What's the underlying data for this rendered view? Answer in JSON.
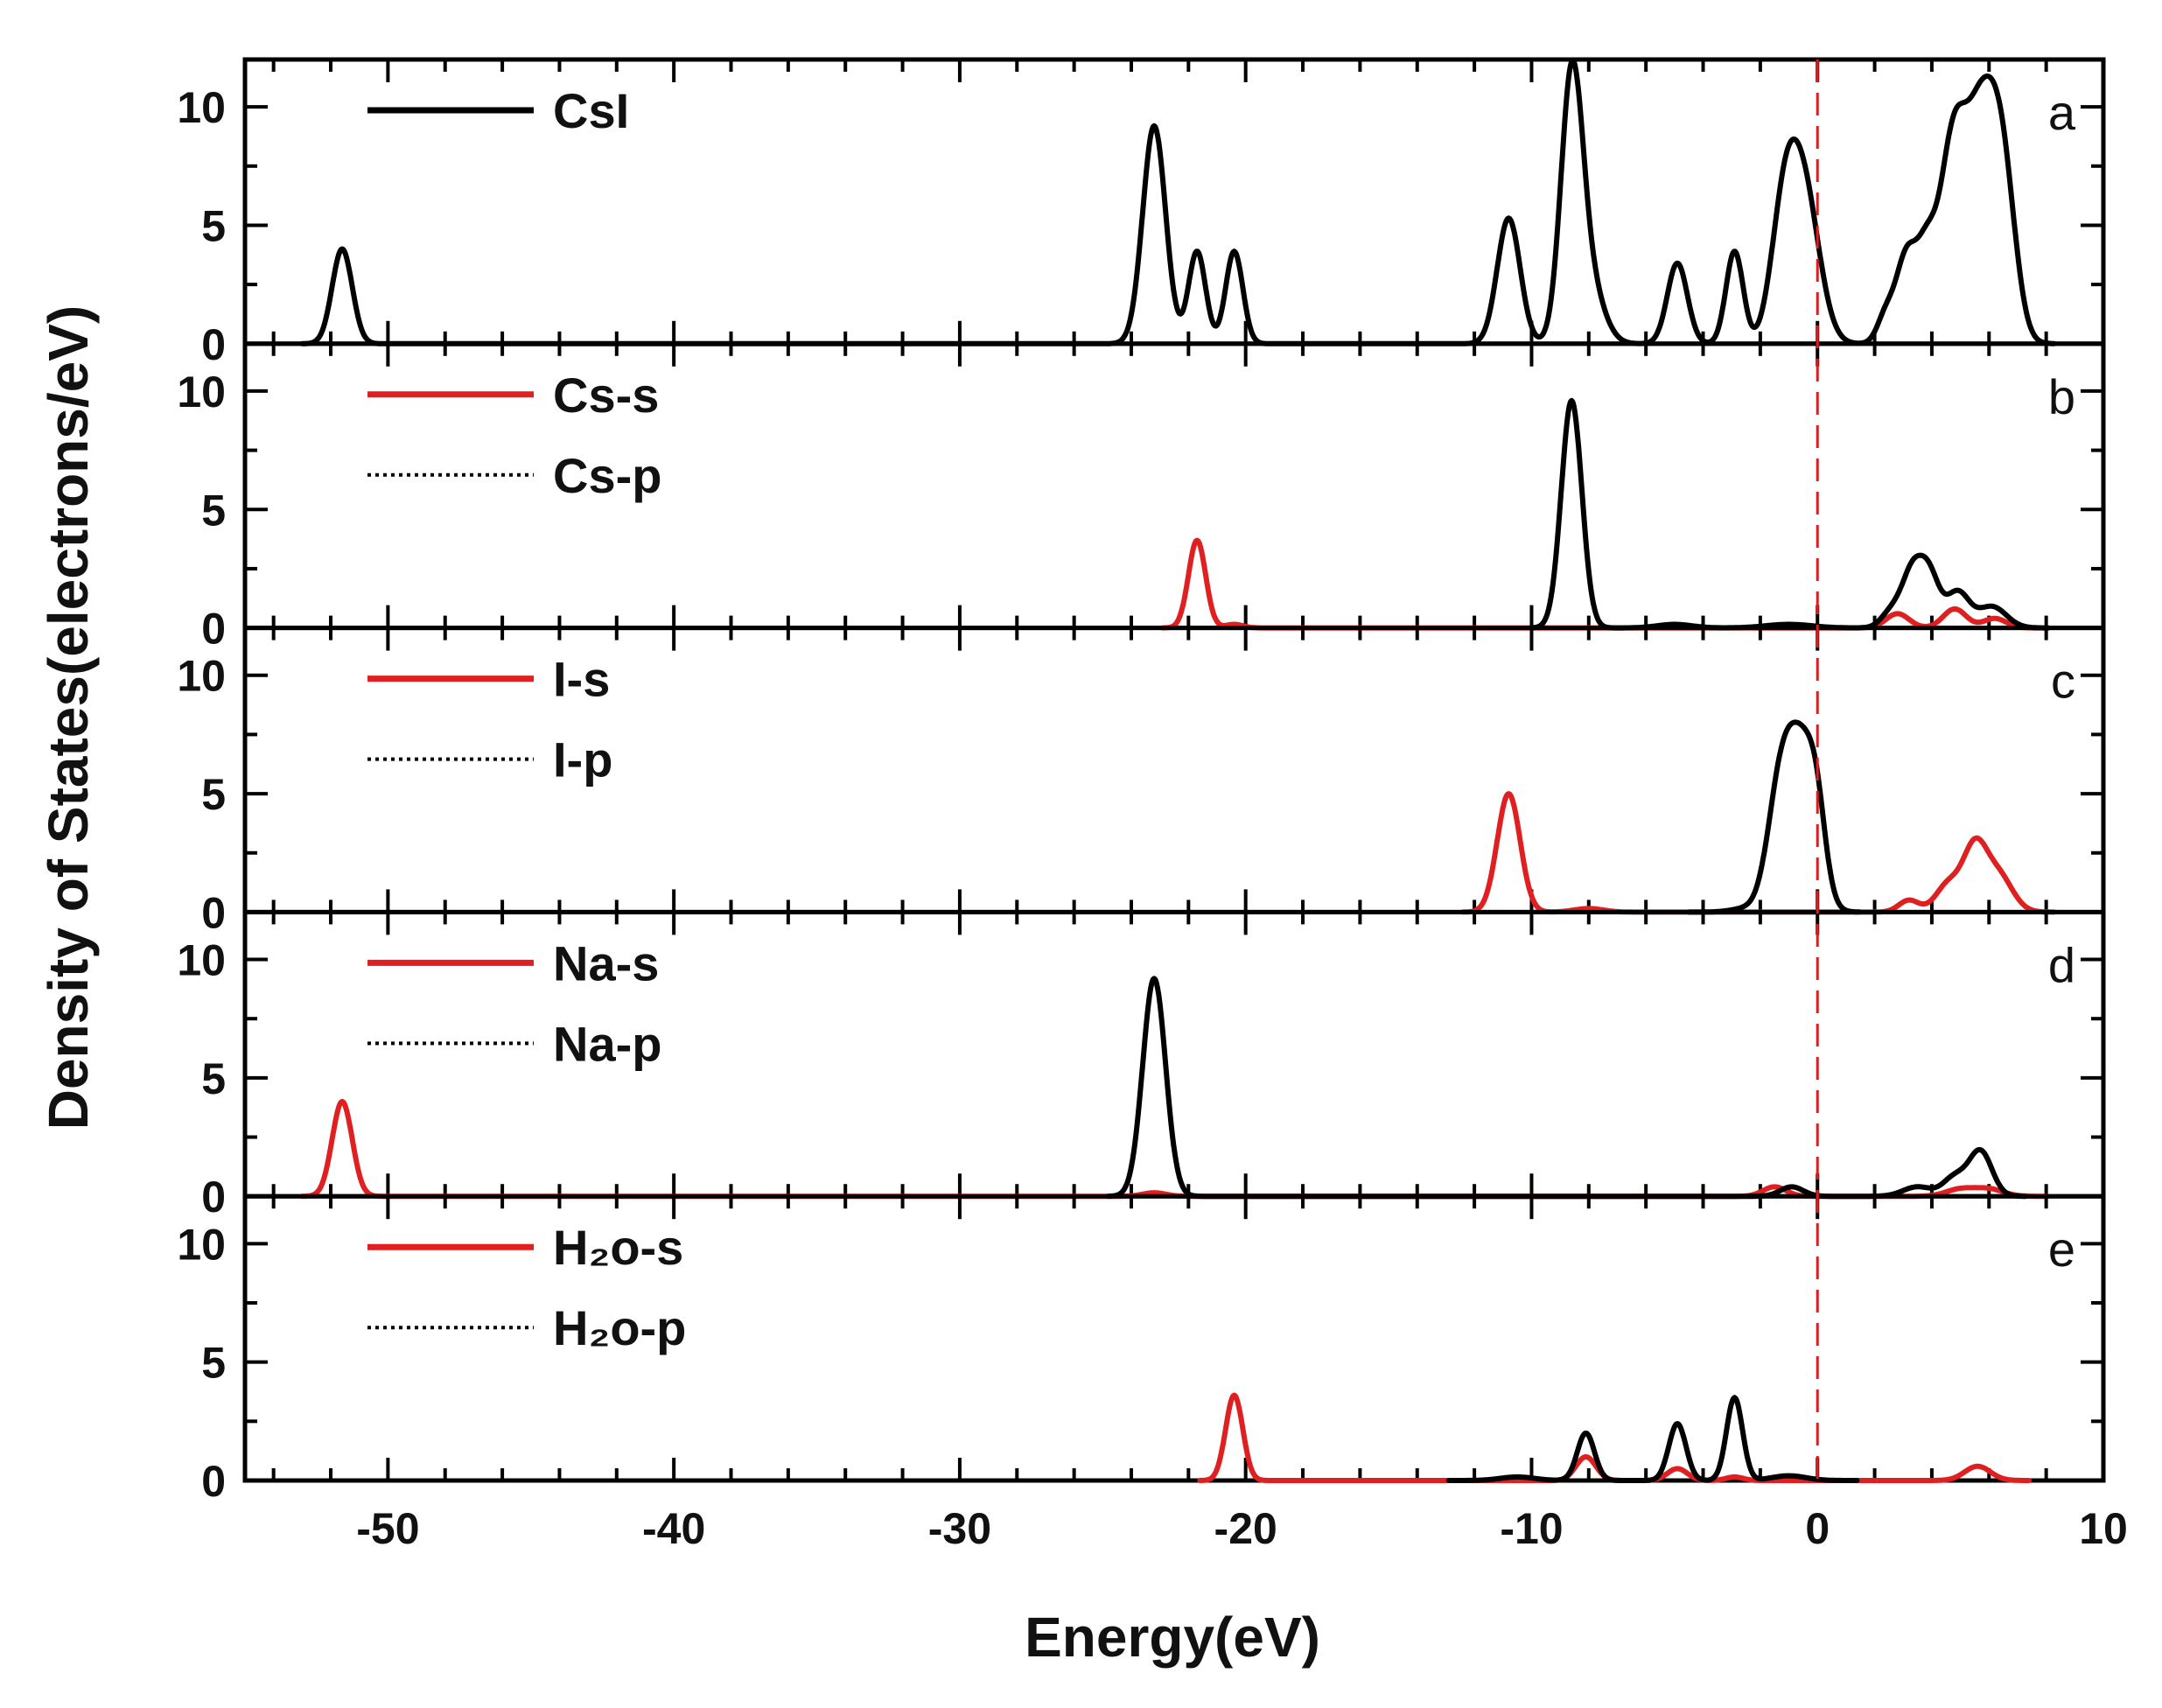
{
  "chart_data": {
    "type": "line",
    "xlabel": "Energy(eV)",
    "ylabel": "Density of States(electrons/eV)",
    "xlim": [
      -55,
      10
    ],
    "x_ticks": [
      "-50",
      "-40",
      "-30",
      "-20",
      "-10",
      "0",
      "10"
    ],
    "x_tick_values": [
      -50,
      -40,
      -30,
      -20,
      -10,
      0,
      10
    ],
    "fermi_level": 0,
    "fermi_line_color": "#d42020",
    "panels": [
      {
        "letter": "a",
        "ylim": [
          0,
          12
        ],
        "y_ticks": [
          "0",
          "5",
          "10"
        ],
        "y_tick_values": [
          0,
          5,
          10
        ],
        "legend": [
          {
            "label": "CsI",
            "style": "solid",
            "color": "#000000"
          }
        ],
        "series": [
          {
            "name": "CsI",
            "color": "#000000",
            "style": "solid",
            "peaks": [
              [
                -51.6,
                4.0,
                0.35
              ],
              [
                -23.2,
                9.2,
                0.4
              ],
              [
                -21.7,
                3.9,
                0.3
              ],
              [
                -20.4,
                3.9,
                0.3
              ],
              [
                -10.8,
                5.3,
                0.4
              ],
              [
                -8.6,
                10.7,
                0.38
              ],
              [
                -8.0,
                2.5,
                0.5
              ],
              [
                -4.9,
                3.4,
                0.35
              ],
              [
                -2.9,
                3.9,
                0.3
              ],
              [
                -1.2,
                4.5,
                0.45
              ],
              [
                -0.5,
                6.5,
                0.55
              ],
              [
                2.4,
                1.2,
                0.3
              ],
              [
                3.1,
                3.5,
                0.35
              ],
              [
                3.8,
                3.5,
                0.35
              ],
              [
                4.7,
                7.5,
                0.45
              ],
              [
                5.7,
                9.2,
                0.55
              ],
              [
                6.5,
                6.0,
                0.45
              ]
            ]
          }
        ]
      },
      {
        "letter": "b",
        "ylim": [
          0,
          12
        ],
        "y_ticks": [
          "0",
          "5",
          "10"
        ],
        "y_tick_values": [
          0,
          5,
          10
        ],
        "legend": [
          {
            "label": "Cs-s",
            "style": "solid",
            "color": "#e02020"
          },
          {
            "label": "Cs-p",
            "style": "dotted",
            "color": "#000000"
          }
        ],
        "series": [
          {
            "name": "Cs-s",
            "color": "#e02020",
            "style": "solid",
            "peaks": [
              [
                -21.7,
                3.7,
                0.3
              ],
              [
                -20.4,
                0.15,
                0.3
              ],
              [
                2.8,
                0.6,
                0.4
              ],
              [
                4.8,
                0.8,
                0.4
              ],
              [
                6.2,
                0.4,
                0.4
              ]
            ]
          },
          {
            "name": "Cs-p",
            "color": "#000000",
            "style": "dotted",
            "peaks": [
              [
                -8.6,
                9.6,
                0.36
              ],
              [
                -5.0,
                0.15,
                0.6
              ],
              [
                -1.0,
                0.15,
                0.8
              ],
              [
                2.6,
                0.7,
                0.35
              ],
              [
                3.3,
                2.2,
                0.35
              ],
              [
                3.9,
                2.2,
                0.35
              ],
              [
                4.9,
                1.5,
                0.4
              ],
              [
                6.1,
                0.9,
                0.5
              ]
            ]
          }
        ]
      },
      {
        "letter": "c",
        "ylim": [
          0,
          12
        ],
        "y_ticks": [
          "0",
          "5",
          "10"
        ],
        "y_tick_values": [
          0,
          5,
          10
        ],
        "legend": [
          {
            "label": "I-s",
            "style": "solid",
            "color": "#e02020"
          },
          {
            "label": "I-p",
            "style": "dotted",
            "color": "#000000"
          }
        ],
        "series": [
          {
            "name": "I-s",
            "color": "#e02020",
            "style": "solid",
            "peaks": [
              [
                -10.8,
                5.0,
                0.4
              ],
              [
                -8.0,
                0.15,
                0.5
              ],
              [
                3.2,
                0.5,
                0.35
              ],
              [
                4.6,
                1.2,
                0.45
              ],
              [
                5.5,
                2.5,
                0.4
              ],
              [
                6.3,
                1.6,
                0.5
              ]
            ]
          },
          {
            "name": "I-p",
            "color": "#000000",
            "style": "dotted",
            "peaks": [
              [
                -1.3,
                5.0,
                0.45
              ],
              [
                -0.5,
                6.3,
                0.5
              ],
              [
                0.0,
                2.0,
                0.3
              ],
              [
                -2.5,
                0.15,
                0.5
              ]
            ]
          }
        ]
      },
      {
        "letter": "d",
        "ylim": [
          0,
          12
        ],
        "y_ticks": [
          "0",
          "5",
          "10"
        ],
        "y_tick_values": [
          0,
          5,
          10
        ],
        "legend": [
          {
            "label": "Na-s",
            "style": "solid",
            "color": "#e02020"
          },
          {
            "label": "Na-p",
            "style": "dotted",
            "color": "#000000"
          }
        ],
        "series": [
          {
            "name": "Na-s",
            "color": "#e02020",
            "style": "solid",
            "peaks": [
              [
                -51.6,
                4.0,
                0.35
              ],
              [
                -23.2,
                0.15,
                0.4
              ],
              [
                -1.5,
                0.4,
                0.4
              ],
              [
                5.0,
                0.3,
                0.5
              ],
              [
                6.0,
                0.3,
                0.5
              ]
            ]
          },
          {
            "name": "Na-p",
            "color": "#000000",
            "style": "dotted",
            "peaks": [
              [
                -23.2,
                9.2,
                0.4
              ],
              [
                -0.9,
                0.4,
                0.4
              ],
              [
                3.5,
                0.4,
                0.5
              ],
              [
                4.8,
                0.8,
                0.4
              ],
              [
                5.7,
                1.9,
                0.4
              ]
            ]
          }
        ]
      },
      {
        "letter": "e",
        "ylim": [
          0,
          12
        ],
        "y_ticks": [
          "0",
          "5",
          "10"
        ],
        "y_tick_values": [
          0,
          5,
          10
        ],
        "legend": [
          {
            "label": "H₂o-s",
            "style": "solid",
            "color": "#e02020"
          },
          {
            "label": "H₂o-p",
            "style": "dotted",
            "color": "#000000"
          }
        ],
        "series": [
          {
            "name": "H₂o-s",
            "color": "#e02020",
            "style": "solid",
            "peaks": [
              [
                -20.4,
                3.6,
                0.3
              ],
              [
                -8.1,
                1.0,
                0.35
              ],
              [
                -4.9,
                0.5,
                0.35
              ],
              [
                -2.9,
                0.15,
                0.3
              ],
              [
                5.6,
                0.6,
                0.45
              ]
            ]
          },
          {
            "name": "H₂o-p",
            "color": "#000000",
            "style": "dotted",
            "peaks": [
              [
                -8.1,
                2.0,
                0.3
              ],
              [
                -4.9,
                2.4,
                0.3
              ],
              [
                -2.9,
                3.5,
                0.28
              ],
              [
                -10.5,
                0.15,
                0.6
              ],
              [
                -1.0,
                0.2,
                0.6
              ]
            ]
          }
        ]
      }
    ]
  }
}
